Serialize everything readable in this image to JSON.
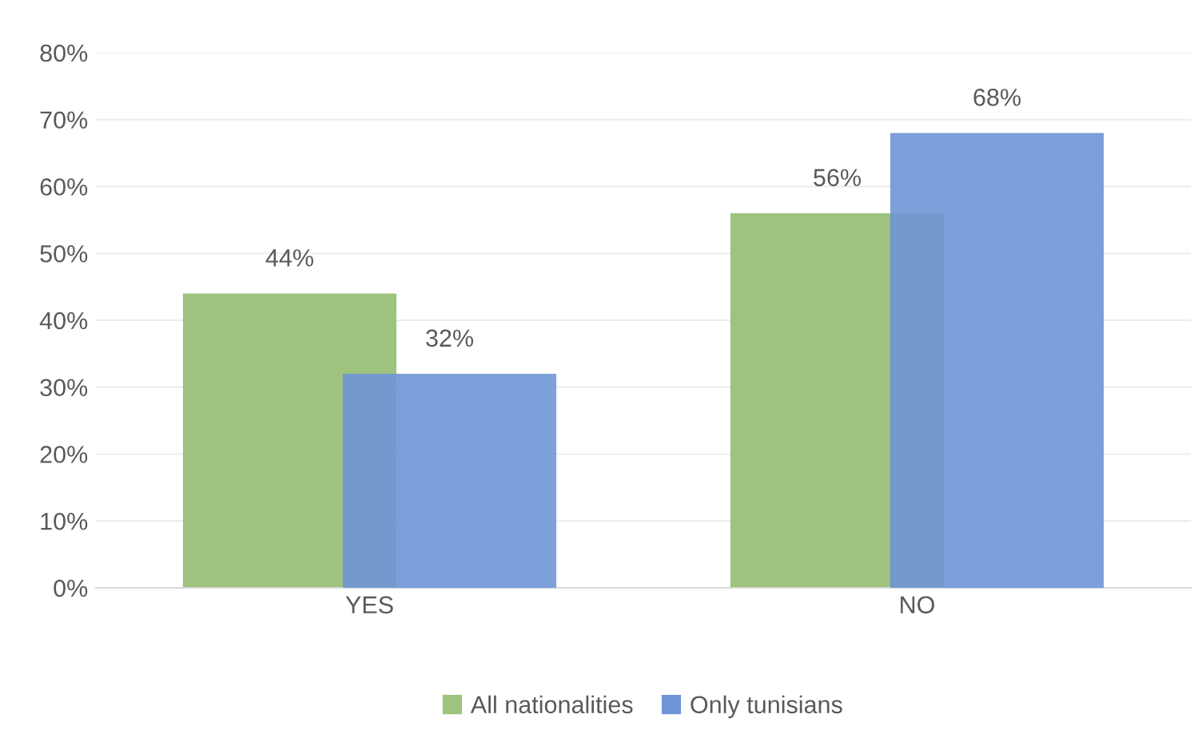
{
  "chart_data": {
    "type": "bar",
    "categories": [
      "YES",
      "NO"
    ],
    "series": [
      {
        "name": "All nationalities",
        "color": "#9dc37e",
        "values": [
          44,
          56
        ],
        "value_labels": [
          "44%",
          "56%"
        ]
      },
      {
        "name": "Only tunisians",
        "color": "#6f95d6",
        "values": [
          32,
          68
        ],
        "value_labels": [
          "32%",
          "68%"
        ]
      }
    ],
    "ylim": [
      0,
      80
    ],
    "yticks": [
      {
        "value": 0,
        "label": "0%"
      },
      {
        "value": 10,
        "label": "10%"
      },
      {
        "value": 20,
        "label": "20%"
      },
      {
        "value": 30,
        "label": "30%"
      },
      {
        "value": 40,
        "label": "40%"
      },
      {
        "value": 50,
        "label": "50%"
      },
      {
        "value": 60,
        "label": "60%"
      },
      {
        "value": 70,
        "label": "70%"
      },
      {
        "value": 80,
        "label": "80%"
      }
    ],
    "grid": "y",
    "legend": "bottom"
  }
}
